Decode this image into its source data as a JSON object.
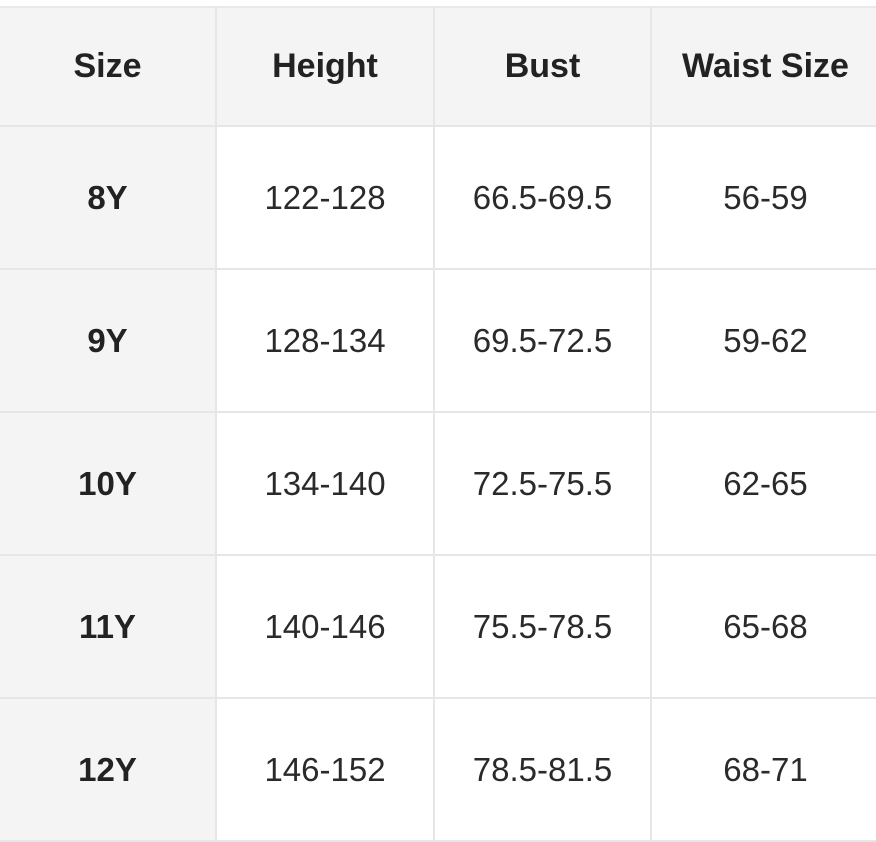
{
  "size_chart": {
    "headers": {
      "size": "Size",
      "height": "Height",
      "bust": "Bust",
      "waist": "Waist Size"
    },
    "rows": [
      {
        "size": "8Y",
        "height": "122-128",
        "bust": "66.5-69.5",
        "waist": "56-59"
      },
      {
        "size": "9Y",
        "height": "128-134",
        "bust": "69.5-72.5",
        "waist": "59-62"
      },
      {
        "size": "10Y",
        "height": "134-140",
        "bust": "72.5-75.5",
        "waist": "62-65"
      },
      {
        "size": "11Y",
        "height": "140-146",
        "bust": "75.5-78.5",
        "waist": "65-68"
      },
      {
        "size": "12Y",
        "height": "146-152",
        "bust": "78.5-81.5",
        "waist": "68-71"
      }
    ]
  },
  "colors": {
    "header_bg": "#f4f4f4",
    "border": "#e6e6e6",
    "text": "#222222"
  }
}
